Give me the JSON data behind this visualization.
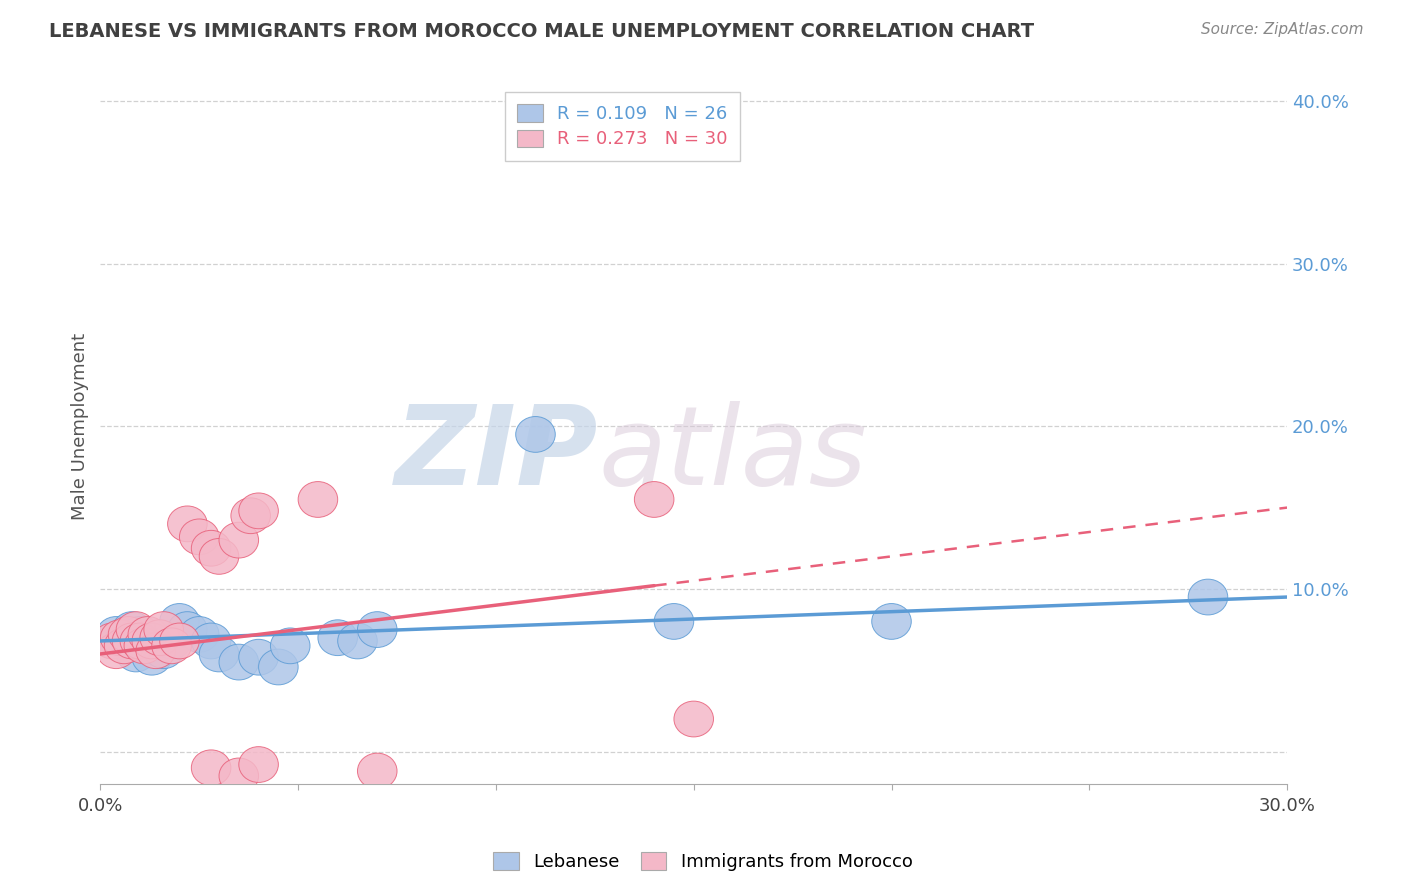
{
  "title": "LEBANESE VS IMMIGRANTS FROM MOROCCO MALE UNEMPLOYMENT CORRELATION CHART",
  "source_text": "Source: ZipAtlas.com",
  "ylabel": "Male Unemployment",
  "xlim": [
    0.0,
    0.3
  ],
  "ylim": [
    -0.02,
    0.42
  ],
  "xticks": [
    0.0,
    0.05,
    0.1,
    0.15,
    0.2,
    0.25,
    0.3
  ],
  "yticks": [
    0.0,
    0.1,
    0.2,
    0.3,
    0.4
  ],
  "legend_entries": [
    {
      "label": "R = 0.109   N = 26",
      "color": "#aec6e8"
    },
    {
      "label": "R = 0.273   N = 30",
      "color": "#f4b8c1"
    }
  ],
  "legend_label_blue": "Lebanese",
  "legend_label_pink": "Immigrants from Morocco",
  "lebanese_scatter": [
    [
      0.004,
      0.072
    ],
    [
      0.006,
      0.068
    ],
    [
      0.008,
      0.075
    ],
    [
      0.009,
      0.06
    ],
    [
      0.01,
      0.072
    ],
    [
      0.012,
      0.065
    ],
    [
      0.013,
      0.058
    ],
    [
      0.015,
      0.07
    ],
    [
      0.016,
      0.062
    ],
    [
      0.018,
      0.068
    ],
    [
      0.02,
      0.08
    ],
    [
      0.022,
      0.075
    ],
    [
      0.025,
      0.072
    ],
    [
      0.028,
      0.068
    ],
    [
      0.03,
      0.06
    ],
    [
      0.035,
      0.055
    ],
    [
      0.04,
      0.058
    ],
    [
      0.045,
      0.052
    ],
    [
      0.048,
      0.065
    ],
    [
      0.06,
      0.07
    ],
    [
      0.065,
      0.068
    ],
    [
      0.07,
      0.075
    ],
    [
      0.11,
      0.195
    ],
    [
      0.145,
      0.08
    ],
    [
      0.2,
      0.08
    ],
    [
      0.28,
      0.095
    ]
  ],
  "morocco_scatter": [
    [
      0.003,
      0.068
    ],
    [
      0.004,
      0.062
    ],
    [
      0.005,
      0.07
    ],
    [
      0.006,
      0.065
    ],
    [
      0.007,
      0.072
    ],
    [
      0.008,
      0.068
    ],
    [
      0.009,
      0.075
    ],
    [
      0.01,
      0.068
    ],
    [
      0.011,
      0.065
    ],
    [
      0.012,
      0.072
    ],
    [
      0.013,
      0.068
    ],
    [
      0.014,
      0.062
    ],
    [
      0.015,
      0.07
    ],
    [
      0.016,
      0.075
    ],
    [
      0.018,
      0.065
    ],
    [
      0.02,
      0.068
    ],
    [
      0.022,
      0.14
    ],
    [
      0.025,
      0.132
    ],
    [
      0.028,
      0.125
    ],
    [
      0.03,
      0.12
    ],
    [
      0.035,
      0.13
    ],
    [
      0.038,
      0.145
    ],
    [
      0.04,
      0.148
    ],
    [
      0.055,
      0.155
    ],
    [
      0.14,
      0.155
    ],
    [
      0.028,
      -0.01
    ],
    [
      0.035,
      -0.015
    ],
    [
      0.04,
      -0.008
    ],
    [
      0.07,
      -0.012
    ],
    [
      0.15,
      0.02
    ]
  ],
  "leb_trend_x": [
    0.0,
    0.3
  ],
  "leb_trend_y": [
    0.068,
    0.095
  ],
  "mor_trend_x": [
    0.0,
    0.3
  ],
  "mor_trend_y": [
    0.06,
    0.15
  ],
  "blue_color": "#5b9bd5",
  "pink_color": "#e8607a",
  "blue_scatter_color": "#aec6e8",
  "pink_scatter_color": "#f4b8c8",
  "background_color": "#ffffff",
  "grid_color": "#cccccc",
  "title_color": "#404040",
  "axis_label_color": "#555555",
  "tick_label_color_blue": "#5b9bd5",
  "watermark_color": "#dce6f0",
  "source_color": "#888888"
}
